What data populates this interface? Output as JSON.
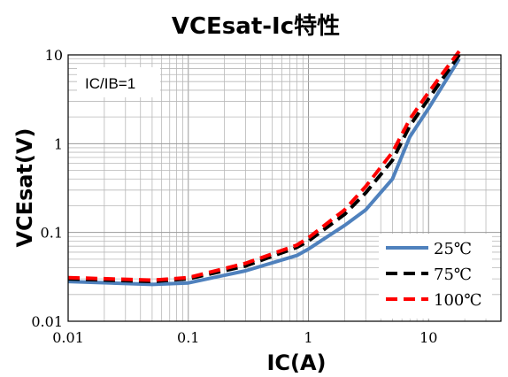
{
  "chart_data": {
    "type": "line",
    "title": "VCEsat-Ic特性",
    "xlabel": "IC(A)",
    "ylabel": "VCEsat(V)",
    "x_scale": "log",
    "y_scale": "log",
    "xlim": [
      0.01,
      40
    ],
    "ylim": [
      0.01,
      10
    ],
    "x_ticks": [
      {
        "value": 0.01,
        "label": "0.01"
      },
      {
        "value": 0.1,
        "label": "0.1"
      },
      {
        "value": 1,
        "label": "1"
      },
      {
        "value": 10,
        "label": "10"
      }
    ],
    "y_ticks": [
      {
        "value": 0.01,
        "label": "0.01"
      },
      {
        "value": 0.1,
        "label": "0.1"
      },
      {
        "value": 1,
        "label": "1"
      },
      {
        "value": 10,
        "label": "10"
      }
    ],
    "grid": true,
    "annotation": "IC/IB=1",
    "legend_position": "bottom-right",
    "series": [
      {
        "name": "25℃",
        "color": "#4f81bd",
        "dash": "solid",
        "points": [
          [
            0.01,
            0.028
          ],
          [
            0.05,
            0.026
          ],
          [
            0.1,
            0.027
          ],
          [
            0.3,
            0.037
          ],
          [
            0.8,
            0.055
          ],
          [
            1,
            0.065
          ],
          [
            2,
            0.12
          ],
          [
            3,
            0.18
          ],
          [
            5,
            0.4
          ],
          [
            7,
            1.2
          ],
          [
            10,
            2.5
          ],
          [
            18,
            9
          ]
        ]
      },
      {
        "name": "75℃",
        "color": "#000000",
        "dash": "dashed",
        "points": [
          [
            0.01,
            0.03
          ],
          [
            0.05,
            0.028
          ],
          [
            0.1,
            0.03
          ],
          [
            0.3,
            0.042
          ],
          [
            0.8,
            0.068
          ],
          [
            1,
            0.08
          ],
          [
            2,
            0.16
          ],
          [
            3,
            0.28
          ],
          [
            5,
            0.65
          ],
          [
            7,
            1.6
          ],
          [
            10,
            3.2
          ],
          [
            18,
            10
          ]
        ]
      },
      {
        "name": "100℃",
        "color": "#ff0000",
        "dash": "dashed",
        "points": [
          [
            0.01,
            0.031
          ],
          [
            0.05,
            0.029
          ],
          [
            0.1,
            0.031
          ],
          [
            0.3,
            0.045
          ],
          [
            0.8,
            0.072
          ],
          [
            1,
            0.087
          ],
          [
            2,
            0.18
          ],
          [
            3,
            0.33
          ],
          [
            5,
            0.8
          ],
          [
            7,
            1.9
          ],
          [
            10,
            3.8
          ],
          [
            18,
            11
          ]
        ]
      }
    ]
  }
}
